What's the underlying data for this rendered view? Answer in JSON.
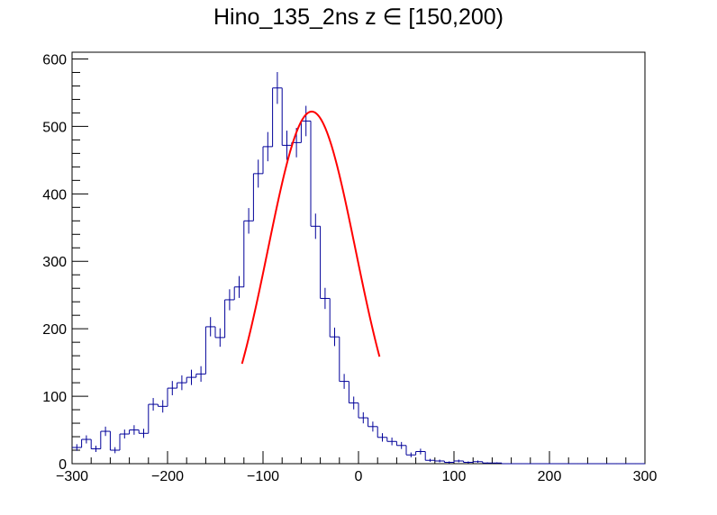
{
  "chart_data": {
    "type": "histogram",
    "title": "Hino_135_2ns z  ∈ [150,200)",
    "xlabel": "",
    "ylabel": "",
    "xlim": [
      -300,
      300
    ],
    "ylim": [
      0,
      610
    ],
    "x_ticks": [
      -300,
      -200,
      -100,
      0,
      100,
      200,
      300
    ],
    "y_ticks": [
      0,
      100,
      200,
      300,
      400,
      500,
      600
    ],
    "grid": false,
    "legend": "none",
    "colors": {
      "histogram": "#000099",
      "fit": "#ff0000"
    },
    "bin_width": 10,
    "bin_centers": [
      -295,
      -285,
      -275,
      -265,
      -255,
      -245,
      -235,
      -225,
      -215,
      -205,
      -195,
      -185,
      -175,
      -165,
      -155,
      -145,
      -135,
      -125,
      -115,
      -105,
      -95,
      -85,
      -75,
      -65,
      -55,
      -45,
      -35,
      -25,
      -15,
      -5,
      5,
      15,
      25,
      35,
      45,
      55,
      65,
      75,
      85,
      95,
      105,
      115,
      125,
      135,
      145,
      155,
      165,
      175,
      185,
      195,
      205,
      215,
      225,
      235,
      245,
      255,
      265,
      275,
      285,
      295
    ],
    "counts": [
      24,
      36,
      22,
      48,
      20,
      44,
      50,
      45,
      88,
      85,
      112,
      120,
      128,
      133,
      203,
      187,
      243,
      262,
      360,
      430,
      470,
      557,
      472,
      476,
      508,
      352,
      245,
      188,
      122,
      90,
      68,
      55,
      39,
      33,
      27,
      13,
      18,
      5,
      4,
      2,
      4,
      2,
      3,
      1,
      1,
      0,
      0,
      0,
      0,
      0,
      0,
      0,
      0,
      0,
      0,
      0,
      0,
      0,
      0,
      0
    ],
    "fit": {
      "function": "gaus",
      "amplitude": 522,
      "mean": -49,
      "sigma": 46,
      "range": [
        -122,
        22
      ]
    }
  }
}
